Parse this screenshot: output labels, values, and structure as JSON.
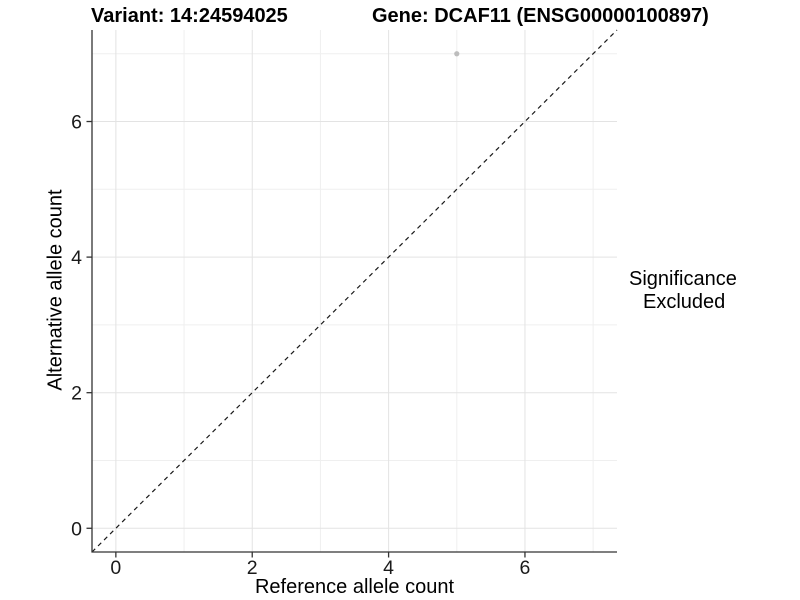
{
  "chart_data": {
    "type": "scatter",
    "titles": {
      "left": "Variant: 14:24594025",
      "right": "Gene: DCAF11 (ENSG00000100897)"
    },
    "xlabel": "Reference allele count",
    "ylabel": "Alternative allele count",
    "xlim": [
      -0.35,
      7.35
    ],
    "ylim": [
      -0.35,
      7.35
    ],
    "x_ticks": [
      0,
      2,
      4,
      6
    ],
    "y_ticks": [
      0,
      2,
      4,
      6
    ],
    "x_minor_ticks": [
      1,
      3,
      5,
      7
    ],
    "y_minor_ticks": [
      1,
      3,
      5,
      7
    ],
    "grid": {
      "on": true,
      "major_color": "#e3e3e3",
      "minor_color": "#efefef"
    },
    "axis_color": "#333333",
    "tick_label_color": "#1a1a1a",
    "identity_line": {
      "slope": 1,
      "intercept": 0,
      "style": "dashed",
      "color": "#1a1a1a"
    },
    "series": [
      {
        "name": "Excluded",
        "color": "#bdbdbd",
        "points": [
          {
            "x": 5,
            "y": 7
          }
        ]
      }
    ],
    "legend": {
      "title": "Significance",
      "position": "right",
      "items": [
        {
          "label": "Excluded",
          "color": "#b3b3b3",
          "marker": "circle"
        }
      ]
    }
  }
}
